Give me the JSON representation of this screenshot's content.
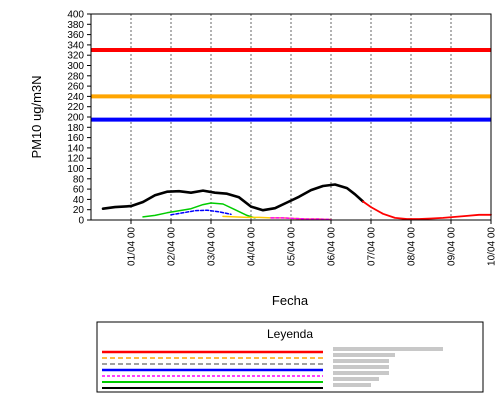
{
  "chart_data": {
    "type": "line",
    "ylabel": "PM10 ug/m3N",
    "xlabel": "Fecha",
    "ylim": [
      0,
      400
    ],
    "yticks": [
      0,
      20,
      40,
      60,
      80,
      100,
      120,
      140,
      160,
      180,
      200,
      220,
      240,
      260,
      280,
      300,
      320,
      340,
      360,
      380,
      400
    ],
    "xlim": [
      31,
      41
    ],
    "x_ticks": [
      {
        "x": 32,
        "label": "01/04 00"
      },
      {
        "x": 33,
        "label": "02/04 00"
      },
      {
        "x": 34,
        "label": "03/04 00"
      },
      {
        "x": 35,
        "label": "04/04 00"
      },
      {
        "x": 36,
        "label": "05/04 00"
      },
      {
        "x": 37,
        "label": "06/04 00"
      },
      {
        "x": 38,
        "label": "07/04 00"
      },
      {
        "x": 39,
        "label": "08/04 00"
      },
      {
        "x": 40,
        "label": "09/04 00"
      },
      {
        "x": 41,
        "label": "10/04 00"
      }
    ],
    "grid": true,
    "thresholds": [
      {
        "value": 330,
        "color": "#ff0000"
      },
      {
        "value": 240,
        "color": "#ffa500"
      },
      {
        "value": 195,
        "color": "#0000ff"
      }
    ],
    "series": [
      {
        "color": "#000000",
        "width": 2.6,
        "dash": "",
        "x": [
          31.3,
          31.6,
          32.0,
          32.3,
          32.6,
          32.9,
          33.2,
          33.5,
          33.8,
          34.1,
          34.4,
          34.7,
          35.0,
          35.3,
          35.6,
          35.9,
          36.2,
          36.5,
          36.8,
          37.1,
          37.4,
          37.6,
          37.8
        ],
        "y": [
          22,
          25,
          27,
          35,
          48,
          55,
          56,
          53,
          57,
          53,
          51,
          44,
          26,
          19,
          23,
          34,
          45,
          58,
          66,
          69,
          62,
          50,
          36
        ]
      },
      {
        "color": "#ff0000",
        "width": 1.8,
        "dash": "",
        "x": [
          37.8,
          38.0,
          38.3,
          38.6,
          38.9,
          39.2,
          39.5,
          39.8,
          40.1,
          40.4,
          40.7,
          41.0
        ],
        "y": [
          36,
          25,
          12,
          4,
          2,
          2,
          3,
          4,
          6,
          8,
          10,
          10
        ]
      },
      {
        "color": "#00cc00",
        "width": 1.5,
        "dash": "",
        "x": [
          32.3,
          32.6,
          32.9,
          33.2,
          33.5,
          33.8,
          34.0,
          34.3,
          34.6,
          34.9,
          35.1
        ],
        "y": [
          6,
          9,
          14,
          18,
          22,
          30,
          33,
          31,
          20,
          9,
          4
        ]
      },
      {
        "color": "#0000ff",
        "width": 1.5,
        "dash": "3,2",
        "x": [
          33.0,
          33.3,
          33.6,
          33.9,
          34.2,
          34.5
        ],
        "y": [
          10,
          14,
          18,
          19,
          16,
          11
        ]
      },
      {
        "color": "#ffcc00",
        "width": 1.5,
        "dash": "",
        "x": [
          34.3,
          34.6,
          34.9,
          35.2,
          35.5,
          35.8,
          36.1,
          36.4,
          36.7,
          37.0
        ],
        "y": [
          7,
          6,
          5,
          5,
          4,
          4,
          3,
          2,
          2,
          1
        ]
      },
      {
        "color": "#ff00ff",
        "width": 1.5,
        "dash": "3,2",
        "x": [
          35.5,
          35.8,
          36.1,
          36.4,
          36.7,
          37.0
        ],
        "y": [
          4,
          4,
          3,
          2,
          2,
          1
        ]
      }
    ]
  },
  "legend": {
    "title": "Leyenda",
    "entries": [
      {
        "color": "#ff0000",
        "dash": "",
        "width": 2.5
      },
      {
        "color": "#ffa500",
        "dash": "5,3",
        "width": 1.5
      },
      {
        "color": "#808080",
        "dash": "5,3",
        "width": 1.5
      },
      {
        "color": "#0000ff",
        "dash": "",
        "width": 2.5
      },
      {
        "color": "#ff00ff",
        "dash": "3,2",
        "width": 1.5
      },
      {
        "color": "#00cc00",
        "dash": "",
        "width": 2.0
      },
      {
        "color": "#000000",
        "dash": "",
        "width": 2.0
      }
    ]
  }
}
